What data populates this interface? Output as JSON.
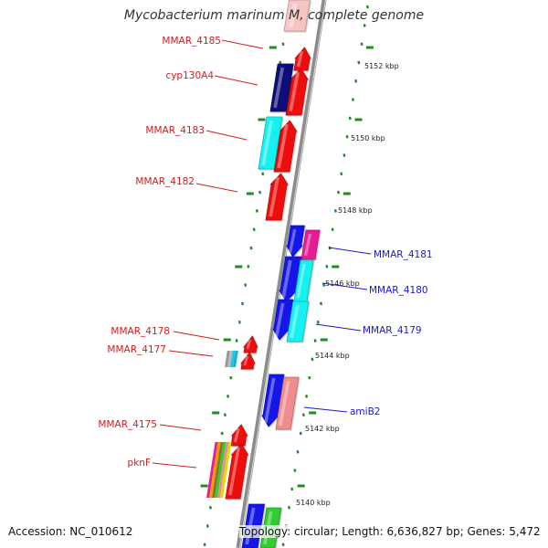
{
  "title": "Mycobacterium marinum M, complete genome",
  "footer": {
    "accession": "Accession: NC_010612",
    "topology": "Topology: circular; Length: 6,636,827 bp; Genes: 5,472"
  },
  "colors": {
    "backbone": "#8c8c8c",
    "ticks": "#1e8c1e",
    "left_labels": "#d11d1d",
    "right_labels": "#1a1acc",
    "red": "#ee1111",
    "blue": "#1212e8",
    "navy": "#10107a",
    "cyan": "#19f0f0",
    "magenta": "#e61e96",
    "pink": "#f08c8c",
    "light_pink": "#f7c4c4",
    "green": "#33cc33"
  },
  "scale_labels": [
    "5152 kbp",
    "5150 kbp",
    "5148 kbp",
    "5146 kbp",
    "5144 kbp",
    "5142 kbp",
    "5140 kbp"
  ],
  "gene_labels": {
    "left": [
      "MMAR_4185",
      "cyp130A4",
      "MMAR_4183",
      "MMAR_4182",
      "MMAR_4178",
      "MMAR_4177",
      "MMAR_4175",
      "pknF"
    ],
    "right": [
      "MMAR_4181",
      "MMAR_4180",
      "MMAR_4179",
      "amiB2"
    ]
  },
  "features": [
    {
      "name": "light-pink",
      "color": "light_pink"
    },
    {
      "name": "mmar-4185-gene",
      "color": "red"
    },
    {
      "name": "cyp130a4-gene-red",
      "color": "red"
    },
    {
      "name": "cyp130a4-gene-navy",
      "color": "navy"
    },
    {
      "name": "mmar-4183-gene-red",
      "color": "red"
    },
    {
      "name": "mmar-4183-gene-cyan",
      "color": "cyan"
    },
    {
      "name": "mmar-4182-gene",
      "color": "red"
    },
    {
      "name": "mmar-4181-gene-blue",
      "color": "blue"
    },
    {
      "name": "mmar-4181-gene-magenta",
      "color": "magenta"
    },
    {
      "name": "mmar-4180-gene-blue",
      "color": "blue"
    },
    {
      "name": "mmar-4180-gene-cyan",
      "color": "cyan"
    },
    {
      "name": "mmar-4179-gene-blue",
      "color": "blue"
    },
    {
      "name": "mmar-4179-gene-cyan",
      "color": "cyan"
    },
    {
      "name": "mmar-4178-gene",
      "color": "red"
    },
    {
      "name": "mmar-4177-gene",
      "color": "red"
    },
    {
      "name": "amib2-gene-blue",
      "color": "blue"
    },
    {
      "name": "amib2-gene-pink",
      "color": "pink"
    },
    {
      "name": "mmar-4175-gene",
      "color": "red"
    },
    {
      "name": "pknf-gene",
      "color": "red"
    },
    {
      "name": "bottom-gene-blue",
      "color": "blue"
    },
    {
      "name": "bottom-gene-green",
      "color": "green"
    }
  ]
}
